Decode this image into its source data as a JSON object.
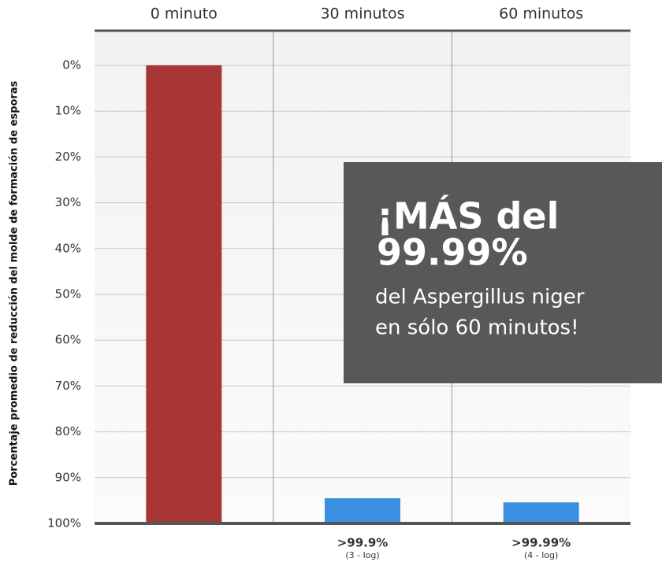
{
  "chart_data": {
    "type": "bar",
    "ylabel": "Porcentaje promedio de reducción del molde de formación de esporas",
    "categories": [
      "0 minuto",
      "30 minutos",
      "60 minutos"
    ],
    "values": [
      0,
      94.5,
      95.4
    ],
    "colors": [
      "#a83636",
      "#3a8fe0",
      "#3a8fe0"
    ],
    "ylim": [
      0,
      100
    ],
    "y_inverted": true,
    "yticks": [
      {
        "value": 0,
        "label": "0%"
      },
      {
        "value": 10,
        "label": "10%"
      },
      {
        "value": 20,
        "label": "20%"
      },
      {
        "value": 30,
        "label": "30%"
      },
      {
        "value": 40,
        "label": "40%"
      },
      {
        "value": 50,
        "label": "50%"
      },
      {
        "value": 60,
        "label": "60%"
      },
      {
        "value": 70,
        "label": "70%"
      },
      {
        "value": 80,
        "label": "80%"
      },
      {
        "value": 90,
        "label": "90%"
      },
      {
        "value": 100,
        "label": "100%"
      }
    ],
    "grid": true,
    "bar_notes": [
      null,
      {
        "text": ">99.9%",
        "note": "(3 - log)"
      },
      {
        "text": ">99.99%",
        "note": "(4 - log)"
      }
    ],
    "callout": {
      "headline": [
        "¡MÁS del",
        "99.99%"
      ],
      "lines": [
        "del Aspergillus niger",
        "en sólo 60 minutos!"
      ]
    }
  }
}
